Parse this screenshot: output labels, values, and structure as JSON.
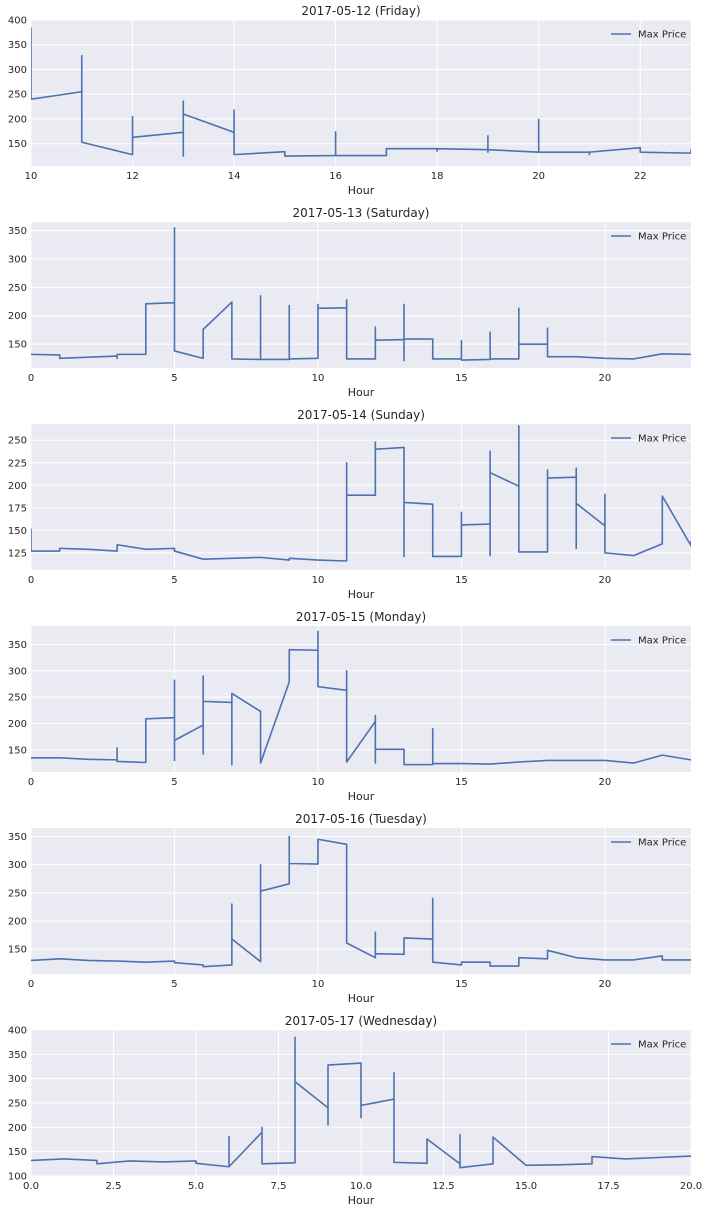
{
  "chart_data": [
    {
      "type": "line",
      "title": "2017-05-12 (Friday)",
      "xlabel": "Hour",
      "ylabel": "",
      "xlim": [
        10,
        23
      ],
      "ylim": [
        105,
        400
      ],
      "xticks": [
        10,
        12,
        14,
        16,
        18,
        20,
        22
      ],
      "xtick_labels": [
        "10",
        "12",
        "14",
        "16",
        "18",
        "20",
        "22"
      ],
      "yticks": [
        150,
        200,
        250,
        300,
        350,
        400
      ],
      "ytick_labels": [
        "150",
        "200",
        "250",
        "300",
        "350",
        "400"
      ],
      "legend": "Max Price",
      "series": [
        {
          "name": "Max Price",
          "x": [
            10,
            10,
            10,
            11,
            11,
            11,
            12,
            12,
            12,
            12,
            12,
            13,
            13,
            13,
            13,
            13,
            14,
            14,
            14,
            14,
            15,
            15,
            16,
            16,
            16,
            17,
            17,
            18,
            18,
            18,
            19,
            19,
            19,
            19,
            20,
            20,
            20,
            21,
            21,
            21,
            22,
            22,
            23,
            23
          ],
          "y": [
            385,
            240,
            240,
            255,
            328,
            153,
            128,
            205,
            128,
            163,
            163,
            173,
            236,
            125,
            210,
            210,
            173,
            218,
            128,
            128,
            134,
            125,
            126,
            174,
            126,
            126,
            140,
            140,
            135,
            140,
            138,
            166,
            133,
            138,
            133,
            199,
            133,
            133,
            128,
            133,
            142,
            133,
            131,
            138
          ]
        }
      ]
    },
    {
      "type": "line",
      "title": "2017-05-13 (Saturday)",
      "xlabel": "Hour",
      "ylabel": "",
      "xlim": [
        0,
        23
      ],
      "ylim": [
        108,
        365
      ],
      "xticks": [
        0,
        5,
        10,
        15,
        20
      ],
      "xtick_labels": [
        "0",
        "5",
        "10",
        "15",
        "20"
      ],
      "yticks": [
        150,
        200,
        250,
        300,
        350
      ],
      "ytick_labels": [
        "150",
        "200",
        "250",
        "300",
        "350"
      ],
      "legend": "Max Price",
      "series": [
        {
          "name": "Max Price",
          "x": [
            0,
            1,
            1,
            3,
            3,
            3,
            4,
            4,
            5,
            5,
            5,
            5,
            6,
            6,
            6,
            7,
            7,
            8,
            8,
            8,
            9,
            9,
            9,
            10,
            10,
            10,
            11,
            11,
            11,
            12,
            12,
            12,
            13,
            13,
            13,
            13,
            14,
            14,
            15,
            15,
            15,
            16,
            16,
            16,
            17,
            17,
            17,
            18,
            18,
            18,
            19,
            20,
            21,
            22,
            23
          ],
          "y": [
            132,
            131,
            125,
            129,
            125,
            132,
            132,
            221,
            223,
            355,
            280,
            138,
            125,
            150,
            176,
            224,
            124,
            123,
            235,
            123,
            123,
            218,
            124,
            125,
            220,
            213,
            214,
            228,
            124,
            124,
            180,
            157,
            158,
            220,
            121,
            159,
            159,
            124,
            124,
            156,
            122,
            123,
            171,
            124,
            124,
            213,
            150,
            150,
            178,
            128,
            128,
            125,
            124,
            133,
            132
          ]
        }
      ]
    },
    {
      "type": "line",
      "title": "2017-05-14 (Sunday)",
      "xlabel": "Hour",
      "ylabel": "",
      "xlim": [
        0,
        23
      ],
      "ylim": [
        106,
        268
      ],
      "xticks": [
        0,
        5,
        10,
        15,
        20
      ],
      "xtick_labels": [
        "0",
        "5",
        "10",
        "15",
        "20"
      ],
      "yticks": [
        125,
        150,
        175,
        200,
        225,
        250
      ],
      "ytick_labels": [
        "125",
        "150",
        "175",
        "200",
        "225",
        "250"
      ],
      "legend": "Max Price",
      "series": [
        {
          "name": "Max Price",
          "x": [
            0,
            0,
            1,
            1,
            2,
            3,
            3,
            4,
            5,
            5,
            6,
            7,
            8,
            9,
            9,
            10,
            11,
            11,
            11,
            12,
            12,
            12,
            13,
            13,
            13,
            14,
            14,
            15,
            15,
            15,
            16,
            16,
            16,
            16,
            17,
            17,
            17,
            17,
            18,
            18,
            18,
            19,
            19,
            19,
            19,
            20,
            20,
            20,
            21,
            22,
            22,
            23,
            23
          ],
          "y": [
            152,
            127,
            127,
            130,
            129,
            127,
            134,
            129,
            130,
            127,
            118,
            119,
            120,
            117,
            119,
            117,
            116,
            225,
            189,
            189,
            248,
            240,
            242,
            121,
            181,
            179,
            121,
            121,
            170,
            156,
            157,
            122,
            238,
            214,
            199,
            266,
            160,
            126,
            126,
            217,
            208,
            209,
            219,
            130,
            180,
            155,
            190,
            125,
            122,
            135,
            188,
            133,
            138
          ]
        }
      ]
    },
    {
      "type": "line",
      "title": "2017-05-15 (Monday)",
      "xlabel": "Hour",
      "ylabel": "",
      "xlim": [
        0,
        23
      ],
      "ylim": [
        108,
        385
      ],
      "xticks": [
        0,
        5,
        10,
        15,
        20
      ],
      "xtick_labels": [
        "0",
        "5",
        "10",
        "15",
        "20"
      ],
      "yticks": [
        150,
        200,
        250,
        300,
        350
      ],
      "ytick_labels": [
        "150",
        "200",
        "250",
        "300",
        "350"
      ],
      "legend": "Max Price",
      "series": [
        {
          "name": "Max Price",
          "x": [
            0,
            1,
            2,
            3,
            3,
            3,
            4,
            4,
            5,
            5,
            5,
            5,
            6,
            6,
            6,
            6,
            7,
            7,
            7,
            8,
            8,
            8,
            9,
            9,
            9,
            10,
            10,
            10,
            11,
            11,
            11,
            12,
            12,
            12,
            12,
            13,
            13,
            14,
            14,
            14,
            15,
            16,
            17,
            18,
            19,
            20,
            21,
            22,
            23
          ],
          "y": [
            135,
            135,
            132,
            131,
            154,
            128,
            126,
            209,
            211,
            282,
            130,
            168,
            197,
            290,
            142,
            242,
            240,
            122,
            257,
            223,
            224,
            125,
            279,
            278,
            340,
            339,
            375,
            270,
            263,
            300,
            127,
            204,
            215,
            125,
            151,
            151,
            122,
            122,
            190,
            124,
            124,
            123,
            127,
            130,
            130,
            130,
            125,
            140,
            131
          ]
        }
      ]
    },
    {
      "type": "line",
      "title": "2017-05-16 (Tuesday)",
      "xlabel": "Hour",
      "ylabel": "",
      "xlim": [
        0,
        23
      ],
      "ylim": [
        106,
        365
      ],
      "xticks": [
        0,
        5,
        10,
        15,
        20
      ],
      "xtick_labels": [
        "0",
        "5",
        "10",
        "15",
        "20"
      ],
      "yticks": [
        150,
        200,
        250,
        300,
        350
      ],
      "ytick_labels": [
        "150",
        "200",
        "250",
        "300",
        "350"
      ],
      "legend": "Max Price",
      "series": [
        {
          "name": "Max Price",
          "x": [
            0,
            1,
            2,
            3,
            4,
            5,
            5,
            6,
            6,
            7,
            7,
            7,
            8,
            8,
            8,
            9,
            9,
            9,
            10,
            10,
            11,
            11,
            12,
            12,
            12,
            13,
            13,
            14,
            14,
            14,
            15,
            15,
            16,
            16,
            17,
            17,
            18,
            18,
            19,
            20,
            21,
            22,
            22,
            23
          ],
          "y": [
            130,
            133,
            130,
            129,
            127,
            129,
            126,
            122,
            119,
            122,
            230,
            168,
            128,
            300,
            253,
            266,
            350,
            302,
            301,
            345,
            336,
            161,
            135,
            180,
            142,
            141,
            170,
            168,
            240,
            127,
            122,
            127,
            127,
            120,
            120,
            135,
            133,
            148,
            135,
            131,
            131,
            138,
            131,
            131
          ]
        }
      ]
    },
    {
      "type": "line",
      "title": "2017-05-17 (Wednesday)",
      "xlabel": "Hour",
      "ylabel": "",
      "xlim": [
        0,
        20
      ],
      "ylim": [
        100,
        400
      ],
      "xticks": [
        0,
        2.5,
        5,
        7.5,
        10,
        12.5,
        15,
        17.5,
        20
      ],
      "xtick_labels": [
        "0.0",
        "2.5",
        "5.0",
        "7.5",
        "10.0",
        "12.5",
        "15.0",
        "17.5",
        "20.0"
      ],
      "yticks": [
        100,
        150,
        200,
        250,
        300,
        350,
        400
      ],
      "ytick_labels": [
        "100",
        "150",
        "200",
        "250",
        "300",
        "350",
        "400"
      ],
      "legend": "Max Price",
      "series": [
        {
          "name": "Max Price",
          "x": [
            0,
            1,
            2,
            2,
            3,
            4,
            5,
            5,
            6,
            6,
            6,
            7,
            7,
            7,
            8,
            8,
            8,
            9,
            9,
            9,
            10,
            10,
            10,
            11,
            11,
            11,
            12,
            12,
            13,
            13,
            13,
            14,
            14,
            15,
            16,
            17,
            17,
            18,
            19,
            20
          ],
          "y": [
            132,
            135,
            132,
            125,
            131,
            129,
            131,
            126,
            119,
            181,
            119,
            190,
            200,
            125,
            127,
            385,
            294,
            240,
            205,
            328,
            332,
            220,
            245,
            258,
            312,
            128,
            126,
            176,
            125,
            185,
            117,
            125,
            180,
            122,
            123,
            125,
            140,
            135,
            138,
            141
          ]
        }
      ]
    }
  ]
}
